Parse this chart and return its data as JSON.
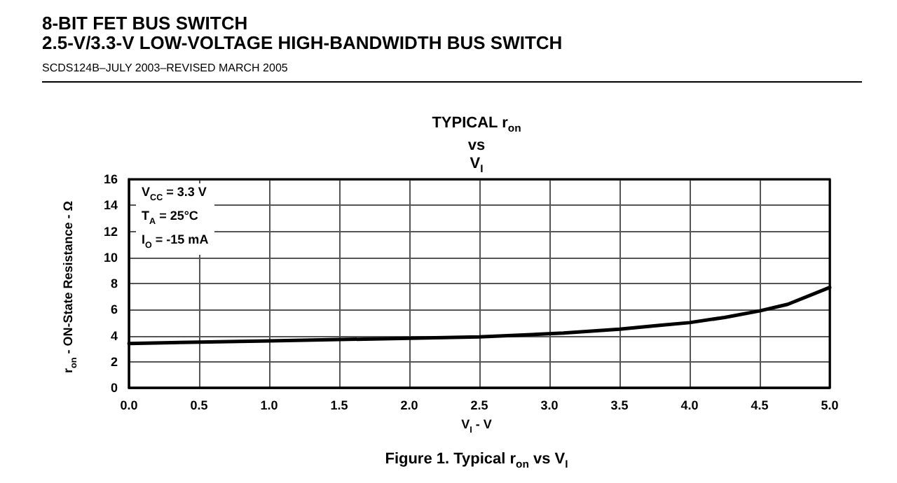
{
  "chart_data": {
    "type": "line",
    "title": "TYPICAL r$_{on}$\nvs\nV$_{I}$",
    "subtitle": "8-BIT FET BUS SWITCH\n2.5-V/3.3-V LOW-VOLTAGE HIGH-BANDWIDTH BUS SWITCH",
    "xlabel": "V$_{I}$ - V",
    "ylabel": "r$_{on}$ - ON-State Resistance - Ω",
    "annotations": [
      "SCDS124B–JULY 2003–REVISED MARCH 2005",
      "V$_{CC}$ = 3.3 V\nT$_{A}$ = 25°C\nI$_{O}$ = -15 mA",
      "Figure 1. Typical r$_{on}$ vs V$_{I}$"
    ],
    "x": [
      0,
      0.5,
      1.0,
      1.5,
      2.0,
      2.5,
      3.1,
      3.5,
      3.8,
      4.0,
      4.25,
      4.5,
      4.7,
      5.0
    ],
    "series": [
      {
        "color": "#000000",
        "values": [
          3.4,
          3.5,
          3.6,
          3.7,
          3.8,
          3.9,
          4.2,
          4.5,
          4.8,
          5.0,
          5.4,
          5.9,
          6.4,
          7.7
        ]
      }
    ],
    "xlim": [
      0,
      5
    ],
    "xticks": [
      {
        "value": 0,
        "label": "0.0"
      },
      {
        "value": 0.5,
        "label": "0.5"
      },
      {
        "value": 1,
        "label": "1.0"
      },
      {
        "value": 1.5,
        "label": "1.5"
      },
      {
        "value": 2,
        "label": "2.0"
      },
      {
        "value": 2.5,
        "label": "2.5"
      },
      {
        "value": 3,
        "label": "3.0"
      },
      {
        "value": 3.5,
        "label": "3.5"
      },
      {
        "value": 4,
        "label": "4.0"
      },
      {
        "value": 4.5,
        "label": "4.5"
      },
      {
        "value": 5,
        "label": "5.0"
      }
    ],
    "ylim": [
      0,
      16
    ],
    "yticks": [
      0,
      2,
      4,
      6,
      8,
      10,
      12,
      14,
      16
    ],
    "grid": true,
    "marker": "none",
    "line_style": "solid"
  }
}
